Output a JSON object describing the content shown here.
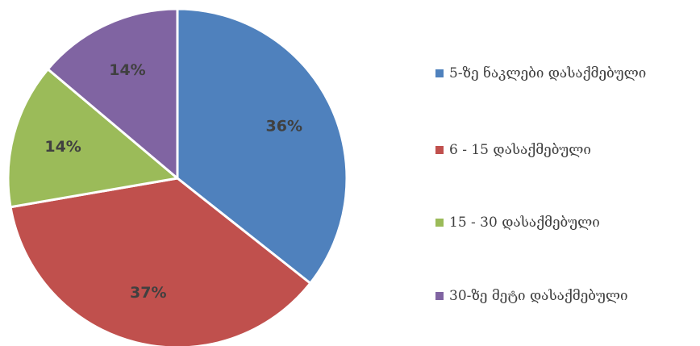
{
  "chart_data": {
    "type": "pie",
    "title": "",
    "legend_position": "right",
    "categories": [
      "5-ზე ნაკლები დასაქმებული",
      "6 - 15 დასაქმებული",
      "15 - 30 დასაქმებული",
      "30-ზე მეტი დასაქმებული"
    ],
    "values": [
      36,
      37,
      14,
      14
    ],
    "labels": [
      "36%",
      "37%",
      "14%",
      "14%"
    ],
    "colors": [
      "#4F81BD",
      "#C0504D",
      "#9BBB59",
      "#8064A2"
    ]
  }
}
